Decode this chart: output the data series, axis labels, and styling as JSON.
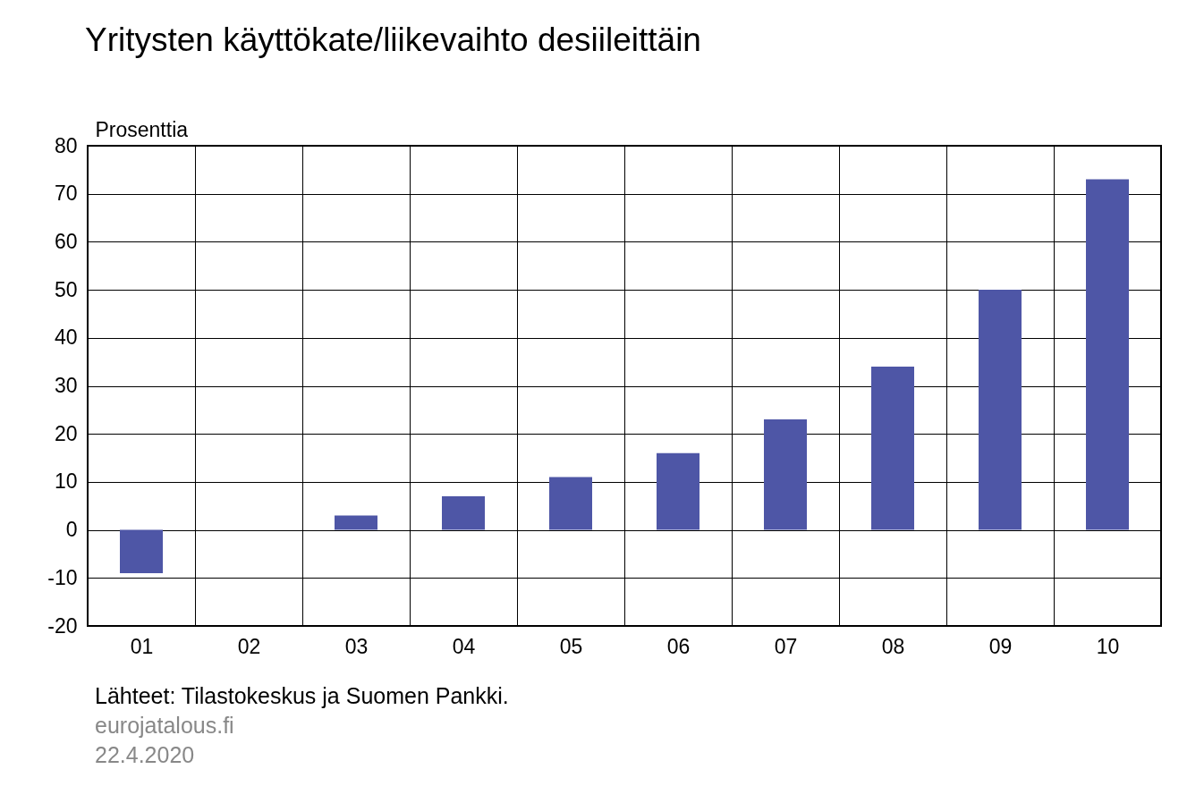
{
  "chart_data": {
    "type": "bar",
    "title": "Yritysten käyttökate/liikevaihto desiileittäin",
    "ylabel": "Prosenttia",
    "categories": [
      "01",
      "02",
      "03",
      "04",
      "05",
      "06",
      "07",
      "08",
      "09",
      "10"
    ],
    "values": [
      -9,
      0,
      3,
      7,
      11,
      16,
      23,
      34,
      50,
      73
    ],
    "color": "#4e56a6",
    "ylim": [
      -20,
      80
    ],
    "yticks": [
      -20,
      -10,
      0,
      10,
      20,
      30,
      40,
      50,
      60,
      70,
      80
    ],
    "grid": true,
    "annotations": [
      "Lähteet: Tilastokeskus ja Suomen Pankki.",
      "eurojatalous.fi",
      "22.4.2020"
    ]
  }
}
